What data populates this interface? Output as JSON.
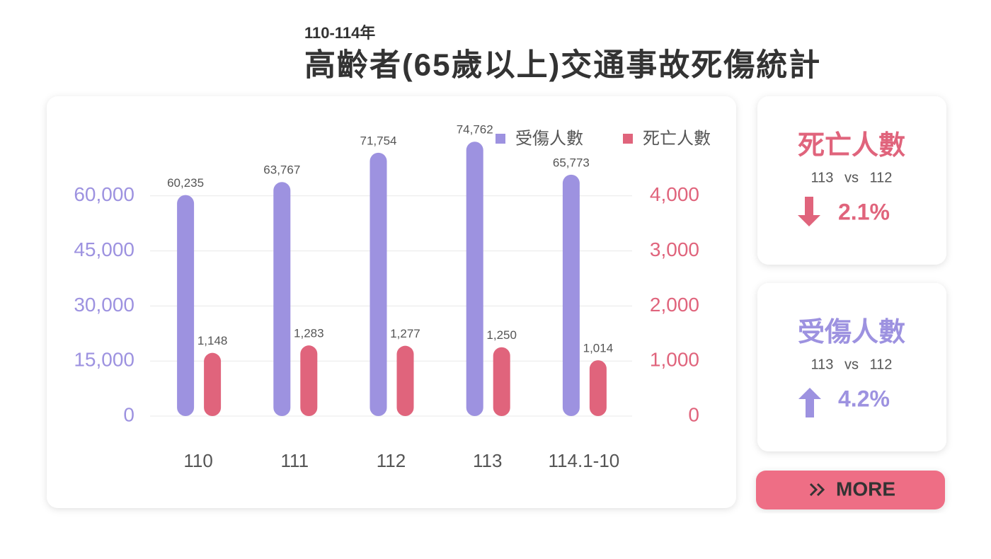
{
  "header": {
    "subtitle": "110-114年",
    "title": "高齡者(65歲以上)交通事故死傷統計"
  },
  "chart_data": {
    "type": "bar",
    "categories": [
      "110",
      "111",
      "112",
      "113",
      "114.1-10"
    ],
    "series": [
      {
        "name": "受傷人數",
        "color": "#9d92e0",
        "values": [
          60235,
          63767,
          71754,
          74762,
          65773
        ],
        "value_labels": [
          "60,235",
          "63,767",
          "71,754",
          "74,762",
          "65,773"
        ]
      },
      {
        "name": "死亡人數",
        "color": "#e0647c",
        "axis": "y2",
        "values": [
          1148,
          1283,
          1277,
          1250,
          1014
        ],
        "value_labels": [
          "1,148",
          "1,283",
          "1,277",
          "1,250",
          "1,014"
        ]
      }
    ],
    "ylim": [
      0,
      75000
    ],
    "yticks": [
      0,
      {
        "value": 15000,
        "label": "15,000"
      },
      {
        "value": 30000,
        "label": "30,000"
      },
      {
        "value": 45000,
        "label": "45,000"
      },
      {
        "value": 60000,
        "label": "60,000"
      }
    ],
    "y2lim": [
      0,
      5000
    ],
    "y2ticks": [
      0,
      {
        "value": 1000,
        "label": "1,000"
      },
      {
        "value": 2000,
        "label": "2,000"
      },
      {
        "value": 3000,
        "label": "3,000"
      },
      {
        "value": 4000,
        "label": "4,000"
      }
    ],
    "grid": true,
    "legend": "top-right"
  },
  "cards": [
    {
      "title": "死亡人數",
      "compare": "113 vs 112",
      "change": "2.1%",
      "direction": "down",
      "color": "#e0647c"
    },
    {
      "title": "受傷人數",
      "compare": "113 vs 112",
      "change": "4.2%",
      "direction": "up",
      "color": "#9d92e0"
    }
  ],
  "button": {
    "label": "MORE"
  }
}
